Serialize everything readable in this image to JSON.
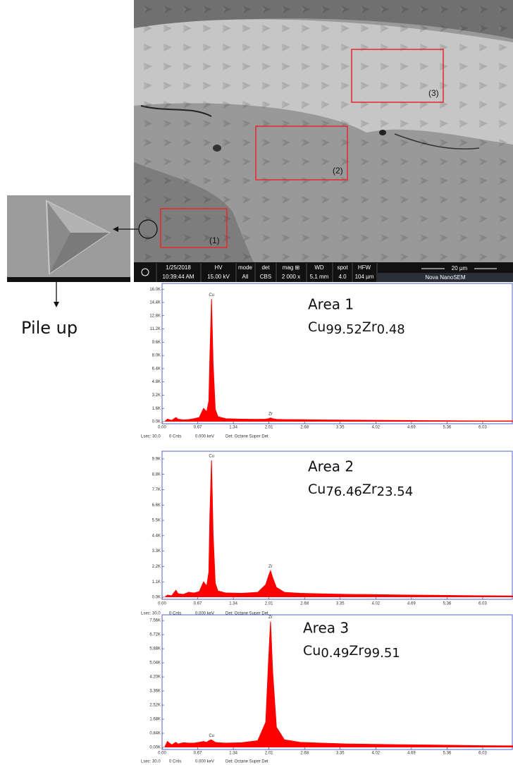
{
  "sem_image": {
    "regions": [
      "(1)",
      "(2)",
      "(3)"
    ],
    "info_bar": {
      "date": "1/25/2018",
      "time": "10:39:44 AM",
      "fields": [
        {
          "label": "HV",
          "value": "15.00 kV"
        },
        {
          "label": "mode",
          "value": "All"
        },
        {
          "label": "det",
          "value": "CBS"
        },
        {
          "label": "mag ⊞",
          "value": "2 000 x"
        },
        {
          "label": "WD",
          "value": "5.1 mm"
        },
        {
          "label": "spot",
          "value": "4.0"
        },
        {
          "label": "HFW",
          "value": "104 µm"
        }
      ],
      "scale_bar": "20 µm",
      "instrument": "Nova NanoSEM"
    }
  },
  "inset_annotation": "Pile up",
  "chart_data": [
    {
      "type": "area",
      "title": "Area 1",
      "composition": [
        {
          "element": "Cu",
          "amount": "99.52"
        },
        {
          "element": "Zr",
          "amount": "0.48"
        }
      ],
      "color": "#ff0000",
      "x": [
        0.05,
        0.1,
        0.18,
        0.26,
        0.3,
        0.4,
        0.5,
        0.6,
        0.7,
        0.78,
        0.84,
        0.88,
        0.9,
        0.93,
        0.96,
        1.0,
        1.05,
        1.2,
        1.5,
        1.8,
        1.95,
        2.0,
        2.04,
        2.08,
        2.15,
        2.3,
        2.6,
        3.0,
        3.5,
        4.0,
        4.5,
        5.0,
        5.5,
        6.0,
        6.6
      ],
      "values": [
        0,
        300,
        150,
        500,
        300,
        200,
        250,
        350,
        500,
        1600,
        1200,
        2500,
        8000,
        14800,
        7000,
        1500,
        600,
        350,
        300,
        280,
        300,
        350,
        450,
        350,
        280,
        250,
        230,
        200,
        180,
        160,
        140,
        120,
        100,
        90,
        80
      ],
      "xlim": [
        0,
        6.6
      ],
      "xticks": [
        {
          "value": 0,
          "label": "0.00"
        },
        0.67,
        1.34,
        2.01,
        2.68,
        3.35,
        4.02,
        4.69,
        5.36,
        6.03
      ],
      "ylim": [
        0,
        16700
      ],
      "yticks": [
        {
          "value": 0,
          "label": "0.0K"
        },
        {
          "value": 1600,
          "label": "1.6K"
        },
        {
          "value": 3200,
          "label": "3.2K"
        },
        {
          "value": 4800,
          "label": "4.8K"
        },
        {
          "value": 6400,
          "label": "6.4K"
        },
        {
          "value": 8000,
          "label": "8.0K"
        },
        {
          "value": 9600,
          "label": "9.6K"
        },
        {
          "value": 11200,
          "label": "11.2K"
        },
        {
          "value": 12800,
          "label": "12.8K"
        },
        {
          "value": 14400,
          "label": "14.4K"
        },
        {
          "value": 16000,
          "label": "16.0K"
        }
      ],
      "annotations": [
        {
          "text": "Cu",
          "x": 0.93
        },
        {
          "text": "Zr",
          "x": 2.04
        }
      ],
      "status": [
        "Lsec: 30.0",
        "0 Cnts",
        "0.000 keV",
        "Det: Octane Super Det"
      ]
    },
    {
      "type": "area",
      "title": "Area 2",
      "composition": [
        {
          "element": "Cu",
          "amount": "76.46"
        },
        {
          "element": "Zr",
          "amount": "23.54"
        }
      ],
      "color": "#ff0000",
      "x": [
        0.05,
        0.1,
        0.18,
        0.26,
        0.3,
        0.4,
        0.5,
        0.6,
        0.7,
        0.78,
        0.84,
        0.88,
        0.9,
        0.93,
        0.96,
        1.0,
        1.05,
        1.2,
        1.5,
        1.8,
        1.95,
        2.0,
        2.04,
        2.08,
        2.15,
        2.3,
        2.6,
        3.0,
        3.5,
        4.0,
        4.5,
        5.0,
        5.5,
        6.0,
        6.6
      ],
      "values": [
        0,
        150,
        100,
        500,
        250,
        200,
        350,
        300,
        400,
        1100,
        800,
        1800,
        6000,
        9800,
        4500,
        1000,
        450,
        300,
        280,
        350,
        900,
        1500,
        1900,
        1400,
        700,
        350,
        280,
        240,
        200,
        180,
        160,
        140,
        120,
        100,
        90
      ],
      "xlim": [
        0,
        6.6
      ],
      "xticks": [
        {
          "value": 0,
          "label": "0.00"
        },
        0.67,
        1.34,
        2.01,
        2.68,
        3.35,
        4.02,
        4.69,
        5.36,
        6.03
      ],
      "ylim": [
        0,
        10450
      ],
      "yticks": [
        {
          "value": 0,
          "label": "0.0K"
        },
        {
          "value": 1100,
          "label": "1.1K"
        },
        {
          "value": 2200,
          "label": "2.2K"
        },
        {
          "value": 3300,
          "label": "3.3K"
        },
        {
          "value": 4400,
          "label": "4.4K"
        },
        {
          "value": 5500,
          "label": "5.5K"
        },
        {
          "value": 6600,
          "label": "6.6K"
        },
        {
          "value": 7700,
          "label": "7.7K"
        },
        {
          "value": 8800,
          "label": "8.8K"
        },
        {
          "value": 9900,
          "label": "9.9K"
        }
      ],
      "annotations": [
        {
          "text": "Cu",
          "x": 0.93
        },
        {
          "text": "Zr",
          "x": 2.04
        }
      ],
      "status": [
        "Lsec: 30.0",
        "0 Cnts",
        "0.000 keV",
        "Det: Octane Super Det"
      ]
    },
    {
      "type": "area",
      "title": "Area 3",
      "composition": [
        {
          "element": "Cu",
          "amount": "0.49"
        },
        {
          "element": "Zr",
          "amount": "99.51"
        }
      ],
      "color": "#ff0000",
      "x": [
        0.05,
        0.1,
        0.18,
        0.26,
        0.3,
        0.4,
        0.5,
        0.6,
        0.7,
        0.78,
        0.84,
        0.88,
        0.9,
        0.93,
        0.96,
        1.0,
        1.05,
        1.2,
        1.5,
        1.8,
        1.95,
        2.0,
        2.04,
        2.08,
        2.15,
        2.3,
        2.6,
        3.0,
        3.5,
        4.0,
        4.5,
        5.0,
        5.5,
        6.0,
        6.6
      ],
      "values": [
        0,
        350,
        150,
        300,
        200,
        280,
        250,
        250,
        300,
        350,
        300,
        400,
        420,
        450,
        380,
        300,
        280,
        250,
        280,
        400,
        1500,
        5000,
        7500,
        4500,
        1200,
        450,
        300,
        250,
        200,
        180,
        160,
        140,
        120,
        100,
        90
      ],
      "xlim": [
        0,
        6.6
      ],
      "xticks": [
        {
          "value": 0,
          "label": "0.00"
        },
        0.67,
        1.34,
        2.01,
        2.68,
        3.35,
        4.02,
        4.69,
        5.36,
        6.03
      ],
      "ylim": [
        0,
        7900
      ],
      "yticks": [
        {
          "value": 0,
          "label": "0.00K"
        },
        {
          "value": 840,
          "label": "0.84K"
        },
        {
          "value": 1680,
          "label": "1.68K"
        },
        {
          "value": 2520,
          "label": "2.52K"
        },
        {
          "value": 3360,
          "label": "3.36K"
        },
        {
          "value": 4200,
          "label": "4.20K"
        },
        {
          "value": 5040,
          "label": "5.04K"
        },
        {
          "value": 5880,
          "label": "5.88K"
        },
        {
          "value": 6720,
          "label": "6.72K"
        },
        {
          "value": 7560,
          "label": "7.56K"
        }
      ],
      "annotations": [
        {
          "text": "Cu",
          "x": 0.93
        },
        {
          "text": "Zr",
          "x": 2.04
        }
      ],
      "status": [
        "Lsec: 30.0",
        "0 Cnts",
        "0.000 keV",
        "Det: Octane Super Det"
      ]
    }
  ]
}
